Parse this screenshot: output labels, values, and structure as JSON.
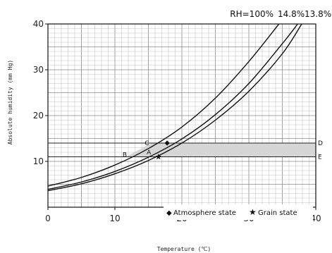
{
  "chart_data": {
    "type": "line",
    "xlabel": "Temperature (℃)",
    "ylabel": "Absolute humidity (mm Hg)",
    "xlim": [
      0,
      40
    ],
    "ylim": [
      0,
      40
    ],
    "x_ticks": [
      "0",
      "10",
      "20",
      "30",
      "40"
    ],
    "y_ticks": [
      "10",
      "20",
      "30",
      "40"
    ],
    "grid": true,
    "series": [
      {
        "name": "RH=100%",
        "x": [
          0,
          5,
          10,
          15,
          20,
          25,
          30,
          34.5
        ],
        "y": [
          4.6,
          6.5,
          9.2,
          12.8,
          17.5,
          23.8,
          31.8,
          40
        ]
      },
      {
        "name": "14.8%",
        "x": [
          0,
          5,
          10,
          15,
          20,
          25,
          30,
          35,
          37.3
        ],
        "y": [
          3.9,
          5.5,
          7.8,
          10.9,
          14.9,
          20.2,
          27.0,
          35.7,
          40
        ]
      },
      {
        "name": "13.8%",
        "x": [
          0,
          5,
          10,
          15,
          20,
          25,
          30,
          35,
          37.9
        ],
        "y": [
          3.6,
          5.1,
          7.3,
          10.2,
          14.0,
          19.0,
          25.3,
          33.5,
          40
        ]
      }
    ],
    "horizontal_lines": [
      {
        "label": "D",
        "y": 14
      },
      {
        "label": "E",
        "y": 11
      }
    ],
    "shaded_band": {
      "y_low": 11,
      "y_high": 14
    },
    "shaded_region": {
      "points": [
        [
          11.6,
          11
        ],
        [
          15.5,
          14
        ],
        [
          40,
          14
        ],
        [
          40,
          11
        ]
      ]
    },
    "extra_lines": [
      {
        "from": [
          15.5,
          14
        ],
        "to": [
          18,
          14
        ]
      },
      {
        "from": [
          11.6,
          11
        ],
        "to": [
          16.5,
          11
        ]
      }
    ],
    "point_labels": [
      {
        "label": "C",
        "x": 15.5,
        "y": 14
      },
      {
        "label": "B",
        "x": 12.2,
        "y": 11.5
      },
      {
        "label": "A",
        "x": 15.8,
        "y": 12.0
      }
    ],
    "markers": [
      {
        "name": "Atmosphere state",
        "symbol": "diamond",
        "x": 17.8,
        "y": 14
      },
      {
        "name": "Grain state",
        "symbol": "star",
        "x": 16.5,
        "y": 11
      }
    ],
    "legend": {
      "position": "bottom-right",
      "entries": [
        {
          "symbol": "◆",
          "label": "Atmosphere state"
        },
        {
          "symbol": "★",
          "label": "Grain state"
        }
      ]
    }
  }
}
